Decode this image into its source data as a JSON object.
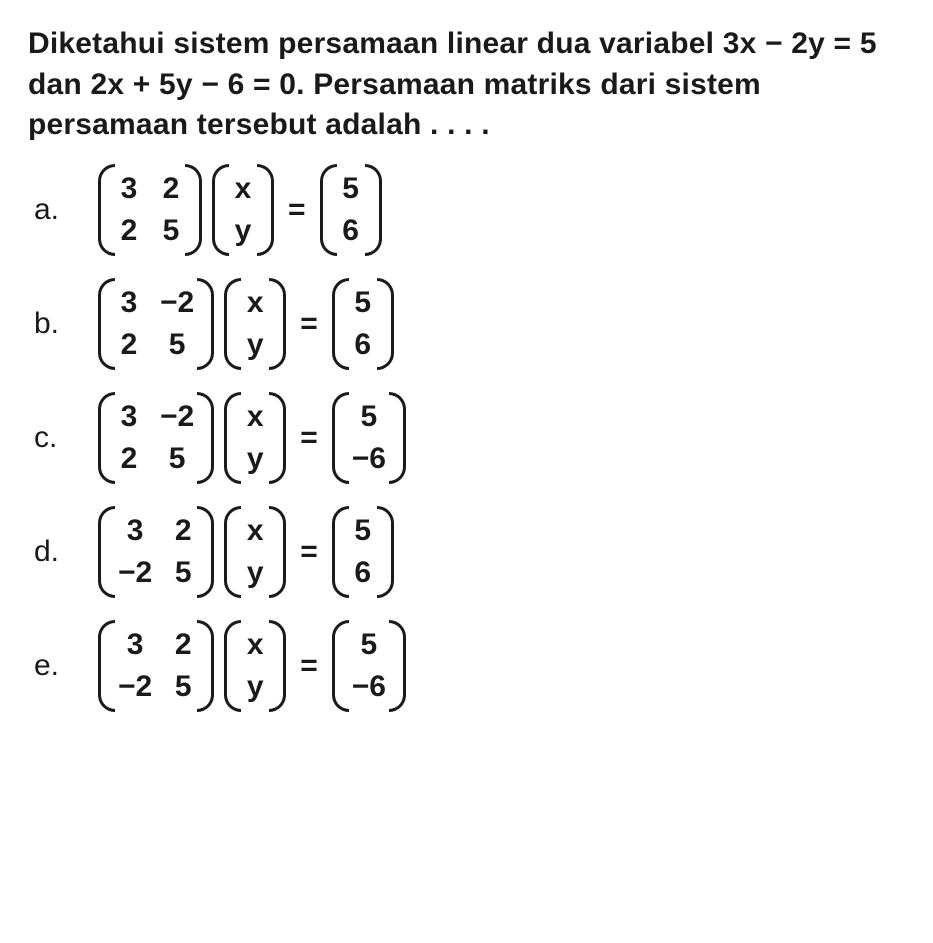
{
  "colors": {
    "text": "#1a1a1a",
    "background": "#ffffff"
  },
  "typography": {
    "question_fontsize_pt": 22,
    "question_fontweight": 700,
    "option_label_fontsize_pt": 22,
    "option_label_fontweight": 400,
    "matrix_fontsize_pt": 22,
    "matrix_fontweight": 700
  },
  "question": {
    "text": "Diketahui sistem persamaan linear dua variabel 3x − 2y = 5 dan 2x + 5y − 6 = 0. Persamaan matriks dari sistem persamaan tersebut adalah . . . ."
  },
  "equals": "=",
  "options": [
    {
      "label": "a.",
      "A": [
        [
          "3",
          "2"
        ],
        [
          "2",
          "5"
        ]
      ],
      "X": [
        [
          "x"
        ],
        [
          "y"
        ]
      ],
      "B": [
        [
          "5"
        ],
        [
          "6"
        ]
      ]
    },
    {
      "label": "b.",
      "A": [
        [
          "3",
          "−2"
        ],
        [
          "2",
          "5"
        ]
      ],
      "X": [
        [
          "x"
        ],
        [
          "y"
        ]
      ],
      "B": [
        [
          "5"
        ],
        [
          "6"
        ]
      ]
    },
    {
      "label": "c.",
      "A": [
        [
          "3",
          "−2"
        ],
        [
          "2",
          "5"
        ]
      ],
      "X": [
        [
          "x"
        ],
        [
          "y"
        ]
      ],
      "B": [
        [
          "5"
        ],
        [
          "−6"
        ]
      ]
    },
    {
      "label": "d.",
      "A": [
        [
          "3",
          "2"
        ],
        [
          "−2",
          "5"
        ]
      ],
      "X": [
        [
          "x"
        ],
        [
          "y"
        ]
      ],
      "B": [
        [
          "5"
        ],
        [
          "6"
        ]
      ]
    },
    {
      "label": "e.",
      "A": [
        [
          "3",
          "2"
        ],
        [
          "−2",
          "5"
        ]
      ],
      "X": [
        [
          "x"
        ],
        [
          "y"
        ]
      ],
      "B": [
        [
          "5"
        ],
        [
          "−6"
        ]
      ]
    }
  ]
}
